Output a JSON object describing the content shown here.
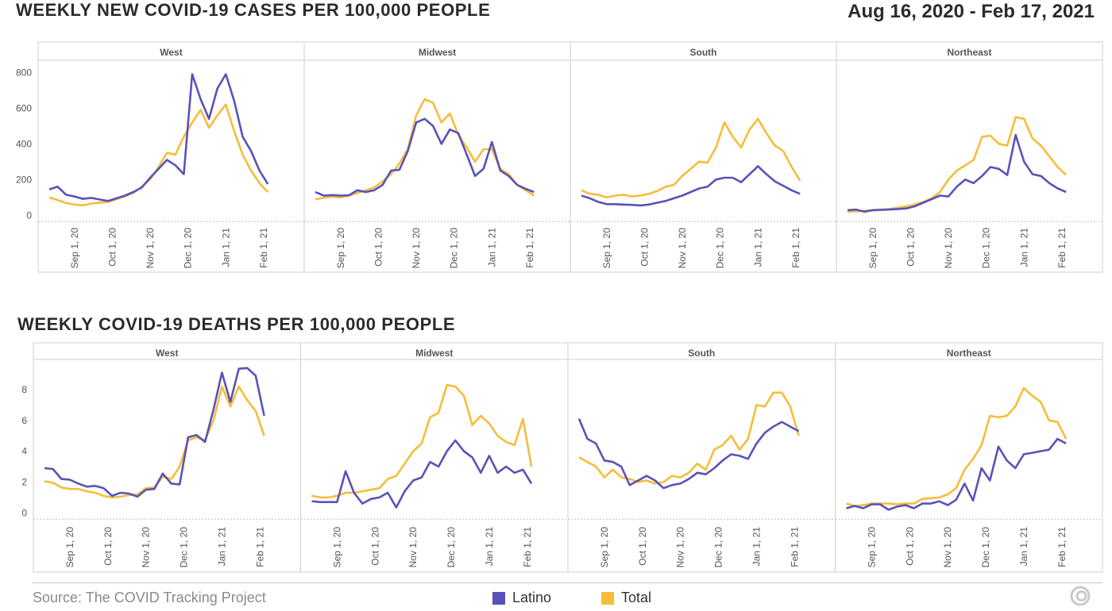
{
  "header": {
    "cases_title": "WEEKLY NEW COVID-19 CASES PER 100,000 PEOPLE",
    "deaths_title": "WEEKLY COVID-19 DEATHS PER 100,000 PEOPLE",
    "date_range": "Aug 16, 2020 - Feb 17, 2021"
  },
  "footer": {
    "source": "Source: The COVID Tracking Project",
    "logo_icon": "covid-tracking-logo-icon"
  },
  "legend": [
    {
      "label": "Latino",
      "color": "#5a52b8"
    },
    {
      "label": "Total",
      "color": "#f6bd3a"
    }
  ],
  "colors": {
    "latino": "#5a52b8",
    "total": "#f6bd3a",
    "frame": "#cfcfcf"
  },
  "chart_data": [
    {
      "type": "line",
      "title": "WEEKLY NEW COVID-19 CASES PER 100,000 PEOPLE",
      "x_ticks": [
        "Sep 1, 20",
        "Oct 1, 20",
        "Nov 1, 20",
        "Dec 1, 20",
        "Jan 1, 21",
        "Feb 1, 21"
      ],
      "x_tick_positions": [
        3,
        7.5,
        12,
        16.5,
        21,
        25.5
      ],
      "y_ticks": [
        0,
        200,
        400,
        600,
        800
      ],
      "ylim": [
        -30,
        850
      ],
      "xlim": [
        0,
        29
      ],
      "panels": [
        {
          "name": "West",
          "series": [
            {
              "name": "Latino",
              "values": [
                145,
                160,
                115,
                105,
                92,
                97,
                88,
                80,
                95,
                110,
                130,
                155,
                210,
                260,
                310,
                280,
                230,
                790,
                650,
                540,
                710,
                790,
                640,
                440,
                360,
                250,
                175
              ]
            },
            {
              "name": "Total",
              "values": [
                100,
                85,
                68,
                60,
                56,
                65,
                70,
                75,
                90,
                105,
                125,
                160,
                200,
                270,
                350,
                340,
                440,
                520,
                590,
                490,
                560,
                620,
                470,
                340,
                250,
                180,
                130
              ]
            }
          ]
        },
        {
          "name": "Midwest",
          "series": [
            {
              "name": "Latino",
              "values": [
                130,
                110,
                113,
                110,
                112,
                140,
                130,
                140,
                170,
                250,
                255,
                360,
                520,
                540,
                500,
                400,
                480,
                460,
                340,
                220,
                260,
                410,
                250,
                220,
                170,
                148,
                130
              ]
            },
            {
              "name": "Total",
              "values": [
                90,
                97,
                105,
                100,
                110,
                125,
                140,
                155,
                190,
                230,
                290,
                370,
                560,
                650,
                630,
                520,
                570,
                450,
                380,
                300,
                370,
                370,
                260,
                230,
                170,
                140,
                110
              ]
            }
          ]
        },
        {
          "name": "South",
          "series": [
            {
              "name": "Latino",
              "values": [
                110,
                95,
                75,
                62,
                62,
                60,
                58,
                55,
                60,
                70,
                80,
                95,
                110,
                130,
                150,
                160,
                200,
                210,
                210,
                185,
                230,
                275,
                230,
                190,
                165,
                140,
                120
              ]
            },
            {
              "name": "Total",
              "values": [
                140,
                120,
                115,
                100,
                110,
                115,
                105,
                110,
                120,
                135,
                160,
                170,
                220,
                260,
                300,
                295,
                380,
                520,
                440,
                380,
                480,
                540,
                460,
                390,
                360,
                270,
                195
              ]
            }
          ]
        },
        {
          "name": "Northeast",
          "series": [
            {
              "name": "Latino",
              "values": [
                28,
                32,
                20,
                28,
                30,
                32,
                35,
                38,
                50,
                70,
                90,
                110,
                105,
                160,
                200,
                180,
                220,
                270,
                260,
                225,
                450,
                300,
                230,
                220,
                180,
                150,
                130
              ]
            },
            {
              "name": "Total",
              "values": [
                20,
                22,
                25,
                30,
                32,
                35,
                42,
                50,
                60,
                75,
                95,
                130,
                200,
                250,
                280,
                310,
                440,
                445,
                400,
                390,
                550,
                540,
                430,
                390,
                330,
                270,
                225
              ]
            }
          ]
        }
      ]
    },
    {
      "type": "line",
      "title": "WEEKLY COVID-19 DEATHS PER 100,000 PEOPLE",
      "x_ticks": [
        "Sep 1, 20",
        "Oct 1, 20",
        "Nov 1, 20",
        "Dec 1, 20",
        "Jan 1, 21",
        "Feb 1, 21"
      ],
      "x_tick_positions": [
        3,
        7.5,
        12,
        16.5,
        21,
        25.5
      ],
      "y_ticks": [
        0,
        2,
        4,
        6,
        8
      ],
      "ylim": [
        -0.5,
        9.8
      ],
      "xlim": [
        0,
        29
      ],
      "panels": [
        {
          "name": "West",
          "series": [
            {
              "name": "Latino",
              "values": [
                2.9,
                2.85,
                2.2,
                2.15,
                1.9,
                1.7,
                1.75,
                1.6,
                1.1,
                1.3,
                1.25,
                1.05,
                1.5,
                1.55,
                2.55,
                1.9,
                1.85,
                4.9,
                5.05,
                4.6,
                6.7,
                9.1,
                7.2,
                9.35,
                9.4,
                8.9,
                6.3
              ]
            },
            {
              "name": "Total",
              "values": [
                2.05,
                1.95,
                1.65,
                1.55,
                1.55,
                1.4,
                1.3,
                1.1,
                1.0,
                1.05,
                1.15,
                1.2,
                1.6,
                1.65,
                2.35,
                2.2,
                3.0,
                4.7,
                4.9,
                4.7,
                6.0,
                8.2,
                6.9,
                8.2,
                7.3,
                6.6,
                5.0
              ]
            }
          ]
        },
        {
          "name": "Midwest",
          "series": [
            {
              "name": "Latino",
              "values": [
                0.75,
                0.7,
                0.7,
                0.7,
                2.7,
                1.3,
                0.6,
                0.9,
                1.0,
                1.3,
                0.35,
                1.4,
                2.1,
                2.3,
                3.3,
                3.0,
                4.0,
                4.7,
                4.0,
                3.6,
                2.6,
                3.7,
                2.6,
                3.0,
                2.6,
                2.8,
                1.9
              ]
            },
            {
              "name": "Total",
              "values": [
                1.1,
                1.0,
                1.0,
                1.1,
                1.3,
                1.3,
                1.4,
                1.5,
                1.6,
                2.2,
                2.4,
                3.2,
                4.0,
                4.5,
                6.2,
                6.5,
                8.3,
                8.2,
                7.6,
                5.7,
                6.3,
                5.8,
                5.0,
                4.6,
                4.4,
                6.1,
                3.0
              ]
            }
          ]
        },
        {
          "name": "South",
          "series": [
            {
              "name": "Latino",
              "values": [
                6.1,
                4.8,
                4.5,
                3.4,
                3.3,
                3.0,
                1.8,
                2.1,
                2.4,
                2.1,
                1.6,
                1.8,
                1.9,
                2.2,
                2.6,
                2.5,
                2.9,
                3.4,
                3.8,
                3.7,
                3.5,
                4.5,
                5.2,
                5.6,
                5.9,
                5.6,
                5.3
              ]
            },
            {
              "name": "Total",
              "values": [
                3.6,
                3.3,
                3.0,
                2.3,
                2.8,
                2.3,
                2.2,
                2.0,
                2.1,
                1.9,
                2.0,
                2.4,
                2.3,
                2.6,
                3.2,
                2.8,
                4.1,
                4.4,
                5.0,
                4.1,
                4.8,
                7.0,
                6.9,
                7.8,
                7.8,
                6.9,
                5.0
              ]
            }
          ]
        },
        {
          "name": "Northeast",
          "series": [
            {
              "name": "Latino",
              "values": [
                0.3,
                0.45,
                0.3,
                0.55,
                0.55,
                0.2,
                0.4,
                0.5,
                0.3,
                0.6,
                0.6,
                0.75,
                0.5,
                0.85,
                1.9,
                0.8,
                2.9,
                2.1,
                4.3,
                3.4,
                2.9,
                3.8,
                3.9,
                4.0,
                4.1,
                4.8,
                4.5
              ]
            },
            {
              "name": "Total",
              "values": [
                0.6,
                0.45,
                0.5,
                0.6,
                0.6,
                0.6,
                0.55,
                0.6,
                0.6,
                0.9,
                0.95,
                1.0,
                1.2,
                1.6,
                2.8,
                3.5,
                4.4,
                6.3,
                6.2,
                6.3,
                6.9,
                8.1,
                7.6,
                7.2,
                6.0,
                5.9,
                4.8
              ]
            }
          ]
        }
      ]
    }
  ]
}
